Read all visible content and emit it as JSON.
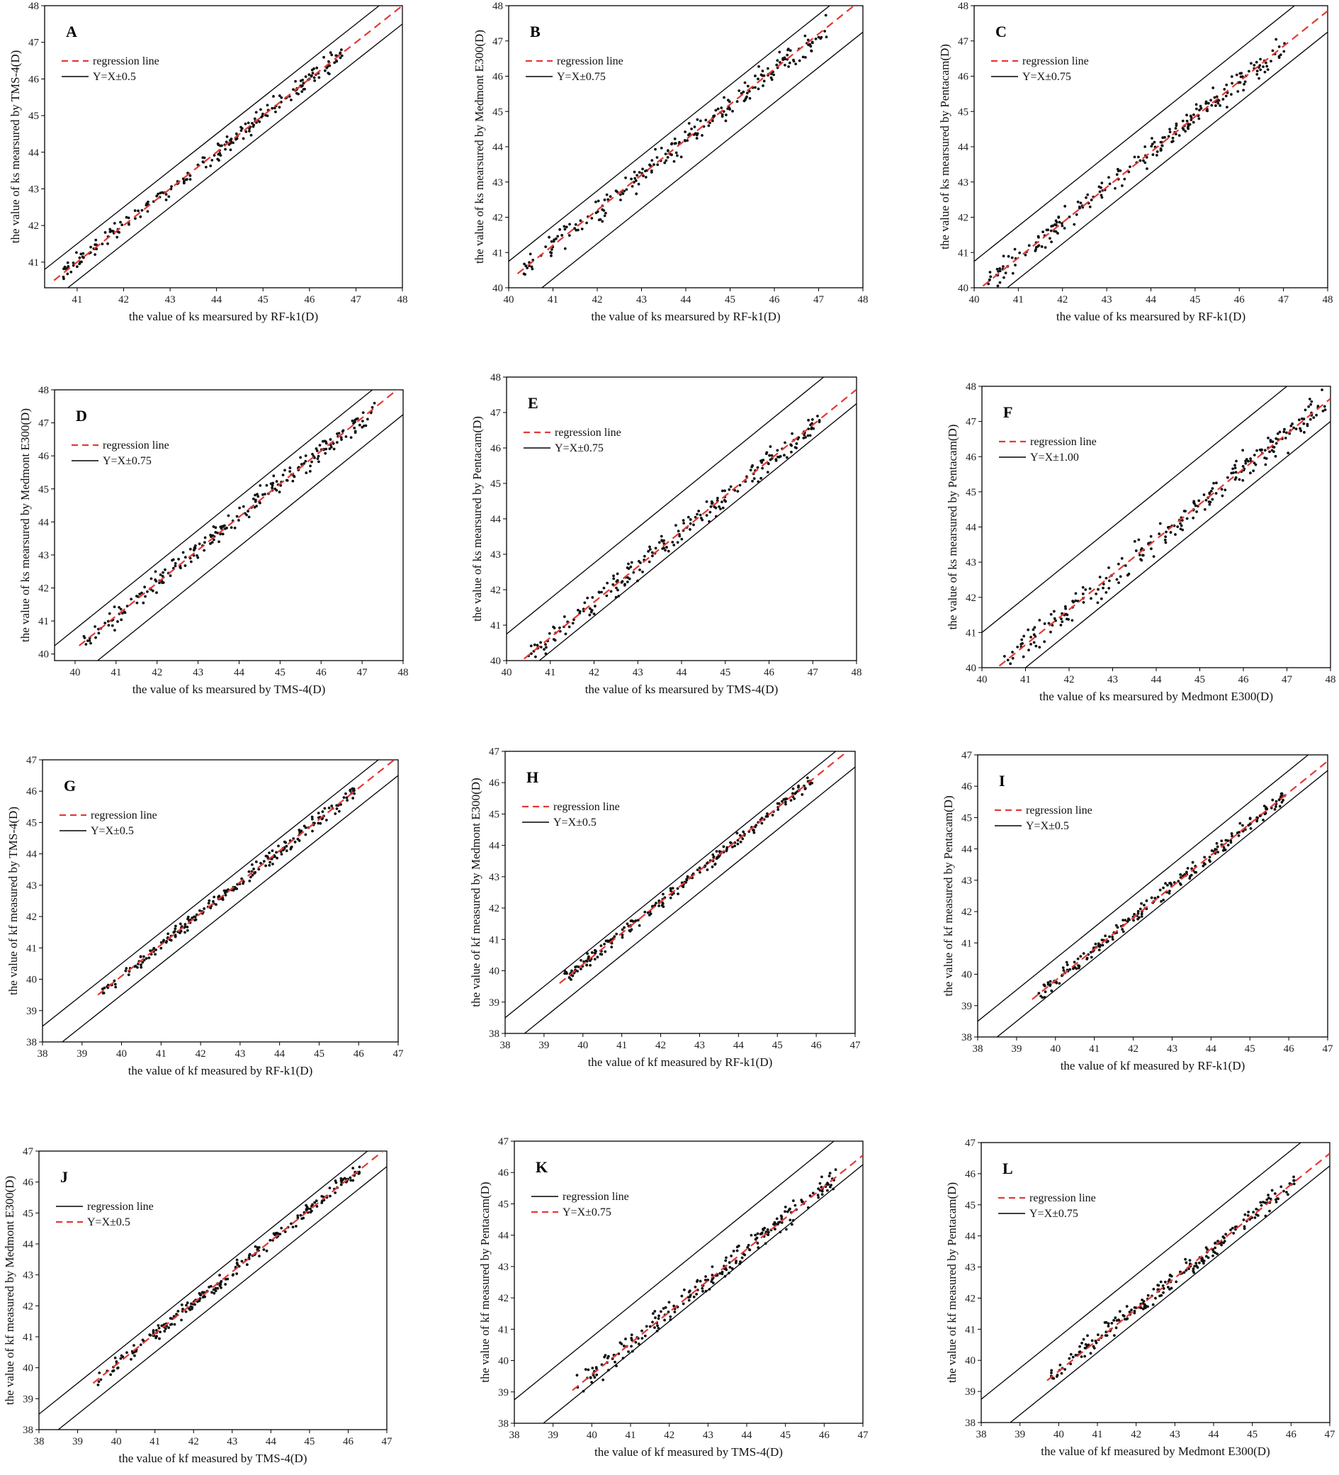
{
  "chart_data": [
    {
      "type": "scatter",
      "panel": "A",
      "xlabel": "the value of ks mearsured by RF-k1(D)",
      "ylabel": "the value of ks mearsured by TMS-4(D)",
      "xlim": [
        40.3,
        48
      ],
      "ylim": [
        40.3,
        48
      ],
      "xticks": [
        41,
        42,
        43,
        44,
        45,
        46,
        47,
        48
      ],
      "yticks": [
        41,
        42,
        43,
        44,
        45,
        46,
        47,
        48
      ],
      "legend": [
        {
          "label": "regression line",
          "style": "dashed",
          "color": "#e53935"
        },
        {
          "label": "Y=X±0.5",
          "style": "solid",
          "color": "#000000"
        }
      ],
      "regression": {
        "slope": 1.0,
        "intercept": 0.0
      },
      "band": 0.5,
      "points_range": [
        40.6,
        46.9
      ],
      "n_points": 220
    },
    {
      "type": "scatter",
      "panel": "B",
      "xlabel": "the value of ks mearsured by RF-k1(D)",
      "ylabel": "the value of ks mearsured by Medmont E300(D)",
      "xlim": [
        40,
        48
      ],
      "ylim": [
        40,
        48
      ],
      "xticks": [
        40,
        41,
        42,
        43,
        44,
        45,
        46,
        47,
        48
      ],
      "yticks": [
        40,
        41,
        42,
        43,
        44,
        45,
        46,
        47,
        48
      ],
      "legend": [
        {
          "label": "regression line",
          "style": "dashed",
          "color": "#e53935"
        },
        {
          "label": "Y=X±0.75",
          "style": "solid",
          "color": "#000000"
        }
      ],
      "regression": {
        "slope": 1.0,
        "intercept": 0.2
      },
      "band": 0.75,
      "points_range": [
        40.3,
        47.2
      ],
      "n_points": 230
    },
    {
      "type": "scatter",
      "panel": "C",
      "xlabel": "the value of ks mearsured by RF-k1(D)",
      "ylabel": "the value of ks  mearsured by Pentacam(D)",
      "xlim": [
        40,
        48
      ],
      "ylim": [
        40,
        48
      ],
      "xticks": [
        40,
        41,
        42,
        43,
        44,
        45,
        46,
        47,
        48
      ],
      "yticks": [
        40,
        41,
        42,
        43,
        44,
        45,
        46,
        47,
        48
      ],
      "legend": [
        {
          "label": "regression line",
          "style": "dashed",
          "color": "#e53935"
        },
        {
          "label": "Y=X±0.75",
          "style": "solid",
          "color": "#000000"
        }
      ],
      "regression": {
        "slope": 1.0,
        "intercept": -0.15
      },
      "band": 0.75,
      "points_range": [
        40.3,
        47.1
      ],
      "n_points": 230
    },
    {
      "type": "scatter",
      "panel": "D",
      "xlabel": "the value of ks mearsured by TMS-4(D)",
      "ylabel": "the value of ks mearsured by Medmont E300(D)",
      "xlim": [
        39.5,
        48
      ],
      "ylim": [
        39.8,
        48
      ],
      "xticks": [
        40,
        41,
        42,
        43,
        44,
        45,
        46,
        47,
        48
      ],
      "yticks": [
        40,
        41,
        42,
        43,
        44,
        45,
        46,
        47,
        48
      ],
      "legend": [
        {
          "label": "regression line",
          "style": "dashed",
          "color": "#e53935"
        },
        {
          "label": "Y=X±0.75",
          "style": "solid",
          "color": "#000000"
        }
      ],
      "regression": {
        "slope": 1.0,
        "intercept": 0.15
      },
      "band": 0.75,
      "points_range": [
        40.2,
        47.4
      ],
      "n_points": 230
    },
    {
      "type": "scatter",
      "panel": "E",
      "xlabel": "the value of ks mearsured by TMS-4(D)",
      "ylabel": "the value of ks mearsured by Pentacam(D)",
      "xlim": [
        40,
        48
      ],
      "ylim": [
        40,
        48
      ],
      "xticks": [
        40,
        41,
        42,
        43,
        44,
        45,
        46,
        47,
        48
      ],
      "yticks": [
        40,
        41,
        42,
        43,
        44,
        45,
        46,
        47,
        48
      ],
      "legend": [
        {
          "label": "regression line",
          "style": "dashed",
          "color": "#e53935"
        },
        {
          "label": "Y=X±0.75",
          "style": "solid",
          "color": "#000000"
        }
      ],
      "regression": {
        "slope": 1.0,
        "intercept": -0.35
      },
      "band": 0.75,
      "points_range": [
        40.5,
        47.2
      ],
      "n_points": 220
    },
    {
      "type": "scatter",
      "panel": "F",
      "xlabel": "the value of ks mearsured by Medmont E300(D)",
      "ylabel": "the value of ks mearsured by Pentacam(D)",
      "xlim": [
        40,
        48
      ],
      "ylim": [
        40,
        48
      ],
      "xticks": [
        40,
        41,
        42,
        43,
        44,
        45,
        46,
        47,
        48
      ],
      "yticks": [
        40,
        41,
        42,
        43,
        44,
        45,
        46,
        47,
        48
      ],
      "legend": [
        {
          "label": "regression line",
          "style": "dashed",
          "color": "#e53935"
        },
        {
          "label": "Y=X±1.00",
          "style": "solid",
          "color": "#000000"
        }
      ],
      "regression": {
        "slope": 1.0,
        "intercept": -0.35
      },
      "band": 1.0,
      "points_range": [
        40.5,
        47.9
      ],
      "n_points": 240
    },
    {
      "type": "scatter",
      "panel": "G",
      "xlabel": "the value of kf measured by RF-k1(D)",
      "ylabel": "the value of kf measured by TMS-4(D)",
      "xlim": [
        38,
        47
      ],
      "ylim": [
        38,
        47
      ],
      "xticks": [
        38,
        39,
        40,
        41,
        42,
        43,
        44,
        45,
        46,
        47
      ],
      "yticks": [
        38,
        39,
        40,
        41,
        42,
        43,
        44,
        45,
        46,
        47
      ],
      "legend": [
        {
          "label": "regression line",
          "style": "dashed",
          "color": "#e53935"
        },
        {
          "label": "Y=X±0.5",
          "style": "solid",
          "color": "#000000"
        }
      ],
      "regression": {
        "slope": 1.0,
        "intercept": 0.1
      },
      "band": 0.5,
      "points_range": [
        39.5,
        45.9
      ],
      "n_points": 220
    },
    {
      "type": "scatter",
      "panel": "H",
      "xlabel": "the value of kf measured by RF-k1(D)",
      "ylabel": "the value of kf measured by Medmont E300(D)",
      "xlim": [
        38,
        47
      ],
      "ylim": [
        38,
        47
      ],
      "xticks": [
        38,
        39,
        40,
        41,
        42,
        43,
        44,
        45,
        46,
        47
      ],
      "yticks": [
        38,
        39,
        40,
        41,
        42,
        43,
        44,
        45,
        46,
        47
      ],
      "legend": [
        {
          "label": "regression line",
          "style": "dashed",
          "color": "#e53935"
        },
        {
          "label": "Y=X±0.5",
          "style": "solid",
          "color": "#000000"
        }
      ],
      "regression": {
        "slope": 1.0,
        "intercept": 0.2
      },
      "band": 0.5,
      "points_range": [
        39.5,
        45.9
      ],
      "n_points": 220
    },
    {
      "type": "scatter",
      "panel": "I",
      "xlabel": "the value of kf measured by RF-k1(D)",
      "ylabel": "the value of kf measured by Pentacam(D)",
      "xlim": [
        38,
        47
      ],
      "ylim": [
        38,
        47
      ],
      "xticks": [
        38,
        39,
        40,
        41,
        42,
        43,
        44,
        45,
        46,
        47
      ],
      "yticks": [
        38,
        39,
        40,
        41,
        42,
        43,
        44,
        45,
        46,
        47
      ],
      "legend": [
        {
          "label": "regression line",
          "style": "dashed",
          "color": "#e53935"
        },
        {
          "label": "Y=X±0.5",
          "style": "solid",
          "color": "#000000"
        }
      ],
      "regression": {
        "slope": 1.0,
        "intercept": -0.2
      },
      "band": 0.5,
      "points_range": [
        39.5,
        45.9
      ],
      "n_points": 220
    },
    {
      "type": "scatter",
      "panel": "J",
      "xlabel": "the value of kf measured by TMS-4(D)",
      "ylabel": "the value of kf measured by Medmont E300(D)",
      "xlim": [
        38,
        47
      ],
      "ylim": [
        38,
        47
      ],
      "xticks": [
        38,
        39,
        40,
        41,
        42,
        43,
        44,
        45,
        46,
        47
      ],
      "yticks": [
        38,
        39,
        40,
        41,
        42,
        43,
        44,
        45,
        46,
        47
      ],
      "legend": [
        {
          "label": "regression line",
          "style": "solid",
          "color": "#000000"
        },
        {
          "label": "Y=X±0.5",
          "style": "dashed",
          "color": "#e53935"
        }
      ],
      "regression": {
        "slope": 1.0,
        "intercept": 0.1
      },
      "band": 0.5,
      "points_range": [
        39.5,
        46.3
      ],
      "n_points": 220
    },
    {
      "type": "scatter",
      "panel": "K",
      "xlabel": "the value of kf measured by TMS-4(D)",
      "ylabel": "the value of kf measured by Pentacam(D)",
      "xlim": [
        38,
        47
      ],
      "ylim": [
        38,
        47
      ],
      "xticks": [
        38,
        39,
        40,
        41,
        42,
        43,
        44,
        45,
        46,
        47
      ],
      "yticks": [
        38,
        39,
        40,
        41,
        42,
        43,
        44,
        45,
        46,
        47
      ],
      "legend": [
        {
          "label": "regression line",
          "style": "solid",
          "color": "#000000"
        },
        {
          "label": "Y=X±0.75",
          "style": "dashed",
          "color": "#e53935"
        }
      ],
      "regression": {
        "slope": 1.0,
        "intercept": -0.45
      },
      "band": 0.75,
      "points_range": [
        39.6,
        46.3
      ],
      "n_points": 220
    },
    {
      "type": "scatter",
      "panel": "L",
      "xlabel": "the value of kf measured by Medmont E300(D)",
      "ylabel": "the value of kf measured by Pentacam(D)",
      "xlim": [
        38,
        47
      ],
      "ylim": [
        38,
        47
      ],
      "xticks": [
        38,
        39,
        40,
        41,
        42,
        43,
        44,
        45,
        46,
        47
      ],
      "yticks": [
        38,
        39,
        40,
        41,
        42,
        43,
        44,
        45,
        46,
        47
      ],
      "legend": [
        {
          "label": "regression line",
          "style": "dashed",
          "color": "#e53935"
        },
        {
          "label": "Y=X±0.75",
          "style": "solid",
          "color": "#000000"
        }
      ],
      "regression": {
        "slope": 1.0,
        "intercept": -0.35
      },
      "band": 0.75,
      "points_range": [
        39.8,
        46.1
      ],
      "n_points": 220
    }
  ]
}
